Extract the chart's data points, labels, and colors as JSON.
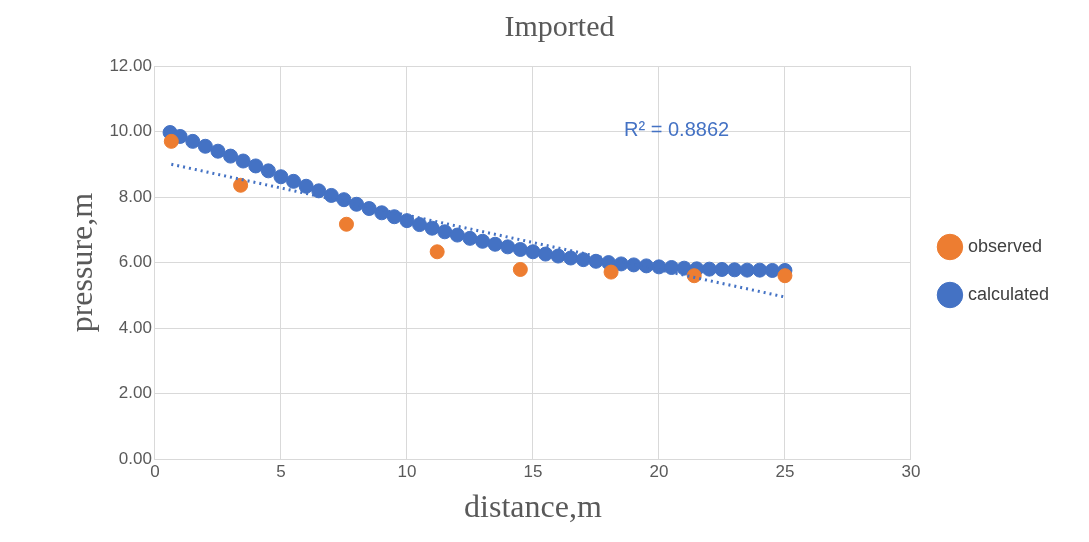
{
  "chart_data": {
    "type": "scatter",
    "title": "Imported",
    "xlabel": "distance,m",
    "ylabel": "pressure,m",
    "xlim": [
      0,
      30
    ],
    "xticks": [
      0,
      5,
      10,
      15,
      20,
      25,
      30
    ],
    "ylim": [
      0,
      12
    ],
    "yticks": [
      {
        "value": 0,
        "label": "0.00"
      },
      {
        "value": 2,
        "label": "2.00"
      },
      {
        "value": 4,
        "label": "4.00"
      },
      {
        "value": 6,
        "label": "6.00"
      },
      {
        "value": 8,
        "label": "8.00"
      },
      {
        "value": 10,
        "label": "10.00"
      },
      {
        "value": 12,
        "label": "12.00"
      }
    ],
    "grid": true,
    "legend": "right",
    "marker": "circle",
    "series": [
      {
        "name": "calculated",
        "color": "#4472c4",
        "x": [
          0.6,
          1,
          1.5,
          2,
          2.5,
          3,
          3.5,
          4,
          4.5,
          5,
          5.5,
          6,
          6.5,
          7,
          7.5,
          8,
          8.5,
          9,
          9.5,
          10,
          10.5,
          11,
          11.5,
          12,
          12.5,
          13,
          13.5,
          14,
          14.5,
          15,
          15.5,
          16,
          16.5,
          17,
          17.5,
          18,
          18.5,
          19,
          19.5,
          20,
          20.5,
          21,
          21.5,
          22,
          22.5,
          23,
          23.5,
          24,
          24.5,
          25
        ],
        "values": [
          9.97,
          9.85,
          9.7,
          9.55,
          9.4,
          9.25,
          9.1,
          8.95,
          8.8,
          8.62,
          8.48,
          8.33,
          8.19,
          8.05,
          7.92,
          7.78,
          7.65,
          7.52,
          7.4,
          7.28,
          7.16,
          7.05,
          6.94,
          6.84,
          6.74,
          6.65,
          6.56,
          6.48,
          6.4,
          6.33,
          6.26,
          6.2,
          6.14,
          6.09,
          6.04,
          6.0,
          5.96,
          5.93,
          5.9,
          5.87,
          5.85,
          5.83,
          5.81,
          5.8,
          5.79,
          5.78,
          5.77,
          5.77,
          5.76,
          5.76
        ]
      },
      {
        "name": "observed",
        "color": "#ed7d31",
        "x": [
          0.65,
          3.4,
          7.6,
          11.2,
          14.5,
          18.1,
          21.4,
          25
        ],
        "values": [
          9.7,
          8.36,
          7.17,
          6.33,
          5.79,
          5.71,
          5.6,
          5.6
        ]
      },
      {
        "type": "line",
        "color": "#4472c4",
        "line_style": "dotted",
        "marker": "none",
        "x": [
          0.65,
          25
        ],
        "values": [
          9.0,
          4.95
        ]
      }
    ],
    "annotations": [
      "R² = 0.8862"
    ]
  }
}
